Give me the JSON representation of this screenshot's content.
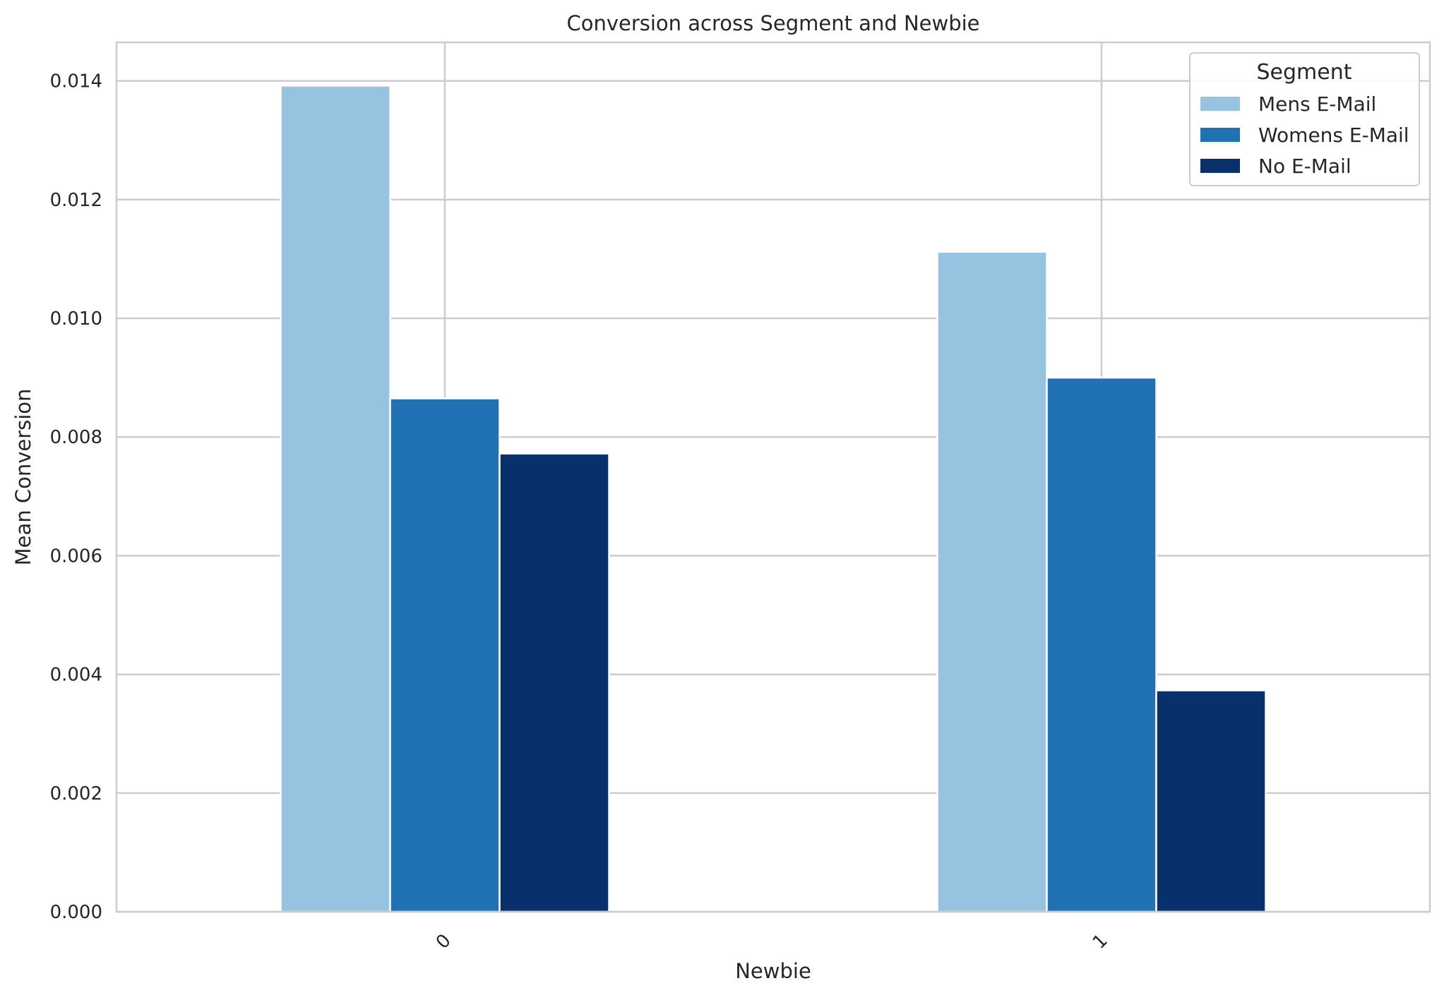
{
  "chart_data": {
    "type": "bar",
    "title": "Conversion across Segment and Newbie",
    "xlabel": "Newbie",
    "ylabel": "Mean Conversion",
    "categories": [
      "0",
      "1"
    ],
    "series": [
      {
        "name": "Mens E-Mail",
        "values": [
          0.01392,
          0.01112
        ],
        "color": "#96c3e0"
      },
      {
        "name": "Womens E-Mail",
        "values": [
          0.00865,
          0.009
        ],
        "color": "#2171b5"
      },
      {
        "name": "No E-Mail",
        "values": [
          0.00772,
          0.00373
        ],
        "color": "#08306b"
      }
    ],
    "ylim": [
      0,
      0.01465
    ],
    "yticks": [
      0.0,
      0.002,
      0.004,
      0.006,
      0.008,
      0.01,
      0.012,
      0.014
    ],
    "ytick_labels": [
      "0.000",
      "0.002",
      "0.004",
      "0.006",
      "0.008",
      "0.010",
      "0.012",
      "0.014"
    ],
    "grid": true,
    "legend": {
      "title": "Segment",
      "placement": "top-right"
    }
  }
}
